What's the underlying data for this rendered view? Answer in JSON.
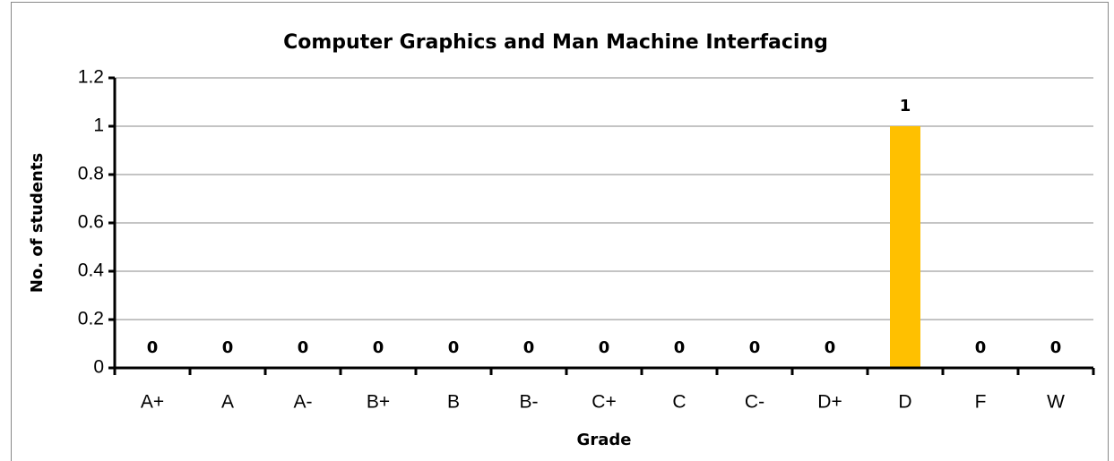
{
  "chart_data": {
    "type": "bar",
    "title": "Computer Graphics and Man Machine Interfacing",
    "x_label": "Grade",
    "y_label": "No. of students",
    "categories": [
      "A+",
      "A",
      "A-",
      "B+",
      "B",
      "B-",
      "C+",
      "C",
      "C-",
      "D+",
      "D",
      "F",
      "W"
    ],
    "values": [
      0,
      0,
      0,
      0,
      0,
      0,
      0,
      0,
      0,
      0,
      1,
      0,
      0
    ],
    "color": "#ffc000",
    "ylim": [
      0,
      1.2
    ],
    "yticks": [
      0,
      0.2,
      0.4,
      0.6,
      0.8,
      1,
      1.2
    ],
    "grid": true
  }
}
